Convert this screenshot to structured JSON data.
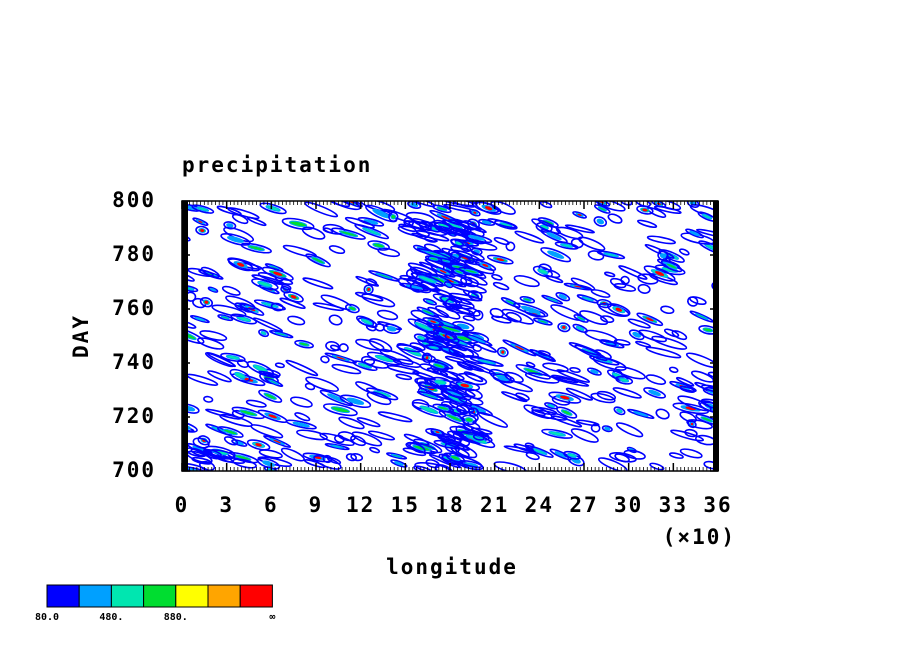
{
  "chart_data": {
    "type": "contour",
    "title": "precipitation",
    "x_label": "longitude",
    "y_label": "DAY",
    "x_scale_label": "(×10)",
    "xlim": [
      0,
      36
    ],
    "xticks": [
      0,
      3,
      6,
      9,
      12,
      15,
      18,
      21,
      24,
      27,
      30,
      33,
      36
    ],
    "ylim": [
      700,
      800
    ],
    "yticks": [
      700,
      720,
      740,
      760,
      780,
      800
    ],
    "colorbar": {
      "colors": [
        "#0000ff",
        "#00a0ff",
        "#00e6b0",
        "#00dd30",
        "#ffff00",
        "#ffa500",
        "#ff0000"
      ],
      "labels": [
        "80.0",
        "480.",
        "880.",
        "∞"
      ]
    }
  }
}
